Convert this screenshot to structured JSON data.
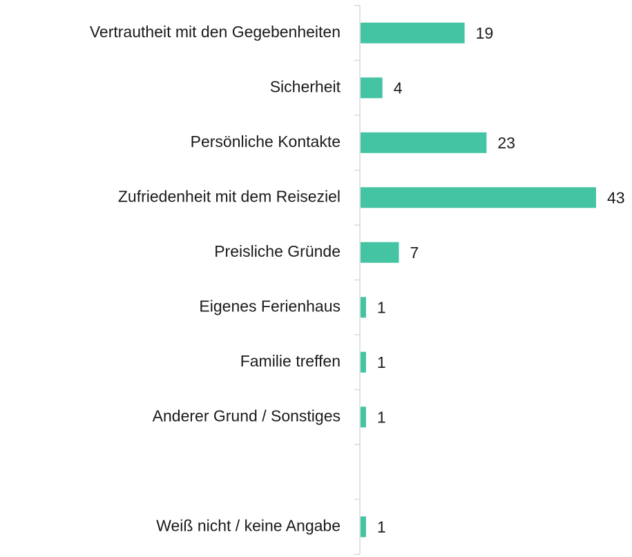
{
  "chart_data": {
    "type": "bar",
    "orientation": "horizontal",
    "categories": [
      "Vertrautheit mit den Gegebenheiten",
      "Sicherheit",
      "Persönliche Kontakte",
      "Zufriedenheit mit dem Reiseziel",
      "Preisliche Gründe",
      "Eigenes Ferienhaus",
      "Familie treffen",
      "Anderer Grund / Sonstiges",
      null,
      "Weiß nicht / keine Angabe"
    ],
    "values": [
      19,
      4,
      23,
      43,
      7,
      1,
      1,
      1,
      null,
      1
    ],
    "color": "#45c4a4"
  }
}
